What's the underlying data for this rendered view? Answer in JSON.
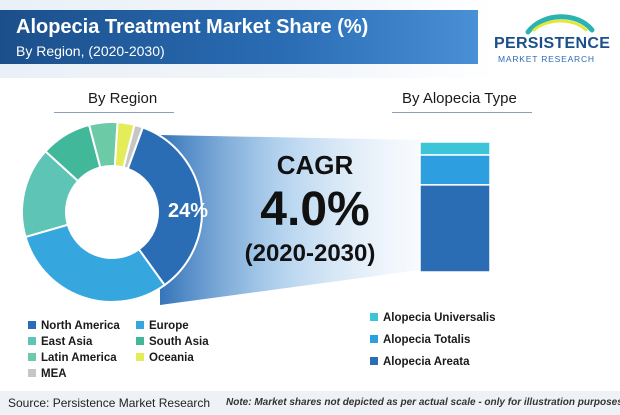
{
  "header": {
    "title": "Alopecia Treatment Market Share (%)",
    "subtitle": "By Region, (2020-2030)"
  },
  "logo": {
    "name": "PERSISTENCE",
    "sub": "MARKET RESEARCH"
  },
  "cagr": {
    "label": "CAGR",
    "value": "4.0%",
    "period": "(2020-2030)"
  },
  "footer": {
    "source": "Source: Persistence Market Research",
    "note": "Note: Market shares not depicted as per actual scale - only for illustration purposes"
  },
  "colors": {
    "north_america": "#2a6db5",
    "europe": "#36a6de",
    "east_asia": "#5ec4b6",
    "south_asia": "#41b89a",
    "latin_america": "#6ccaa6",
    "oceania": "#e4ec5a",
    "mea": "#c6c6c6",
    "alopecia_universalis": "#3cc4d8",
    "alopecia_totalis": "#2d9ee0",
    "alopecia_areata": "#2a6db5"
  },
  "chart_data": [
    {
      "type": "pie",
      "title": "By Region",
      "donut": true,
      "categories": [
        "North America",
        "Europe",
        "East Asia",
        "South Asia",
        "Latin America",
        "Oceania",
        "MEA"
      ],
      "values": [
        34,
        30,
        16,
        9,
        5,
        3,
        1.5
      ],
      "highlight_label": "24%"
    },
    {
      "type": "bar",
      "stacked": true,
      "title": "By Alopecia Type",
      "categories": [
        "Alopecia Universalis",
        "Alopecia Totalis",
        "Alopecia Areata"
      ],
      "values": [
        10,
        23,
        67
      ]
    }
  ]
}
